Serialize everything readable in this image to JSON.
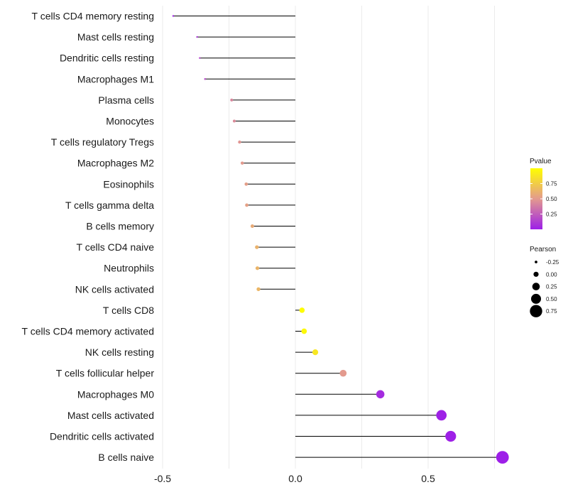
{
  "chart_data": {
    "type": "lollipop",
    "title": "",
    "xlabel": "",
    "ylabel": "",
    "xlim": [
      -0.5,
      0.85
    ],
    "x_ticks": [
      {
        "value": -0.5,
        "label": "-0.5"
      },
      {
        "value": 0.0,
        "label": "0.0"
      },
      {
        "value": 0.5,
        "label": "0.5"
      }
    ],
    "grid": "vertical",
    "colors": {
      "low": "#9d1fe8",
      "mid": "#e39a8e",
      "high": "#ffff00",
      "line": "#000000",
      "grid": "#ebebeb"
    },
    "categories": [
      "T cells CD4 memory resting",
      "Mast cells resting",
      "Dendritic cells resting",
      "Macrophages M1",
      "Plasma cells",
      "Monocytes",
      "T cells regulatory  Tregs ",
      "Macrophages M2",
      "Eosinophils",
      "T cells gamma delta",
      "B cells memory",
      "T cells CD4 naive",
      "Neutrophils",
      "NK cells activated",
      "T cells CD8",
      "T cells CD4 memory activated",
      "NK cells resting",
      "T cells follicular helper",
      "Macrophages M0",
      "Mast cells activated",
      "Dendritic cells activated",
      "B cells naive"
    ],
    "pearson": [
      -0.46,
      -0.37,
      -0.36,
      -0.34,
      -0.24,
      -0.23,
      -0.21,
      -0.2,
      -0.185,
      -0.183,
      -0.162,
      -0.145,
      -0.143,
      -0.139,
      0.025,
      0.033,
      0.075,
      0.18,
      0.32,
      0.55,
      0.585,
      0.78
    ],
    "pvalue": [
      0.02,
      0.1,
      0.15,
      0.18,
      0.42,
      0.44,
      0.48,
      0.5,
      0.52,
      0.53,
      0.58,
      0.62,
      0.63,
      0.64,
      0.99,
      0.97,
      0.88,
      0.5,
      0.05,
      0.01,
      0.005,
      0.0005
    ],
    "legend": {
      "pvalue": {
        "title": "Pvalue",
        "range": [
          0.0,
          1.0
        ],
        "ticks": [
          {
            "value": 0.25,
            "label": "0.25"
          },
          {
            "value": 0.5,
            "label": "0.50"
          },
          {
            "value": 0.75,
            "label": "0.75"
          }
        ]
      },
      "pearson": {
        "title": "Pearson",
        "items": [
          {
            "value": -0.25,
            "label": "-0.25"
          },
          {
            "value": 0.0,
            "label": "0.00"
          },
          {
            "value": 0.25,
            "label": "0.25"
          },
          {
            "value": 0.5,
            "label": "0.50"
          },
          {
            "value": 0.75,
            "label": "0.75"
          }
        ]
      }
    }
  }
}
